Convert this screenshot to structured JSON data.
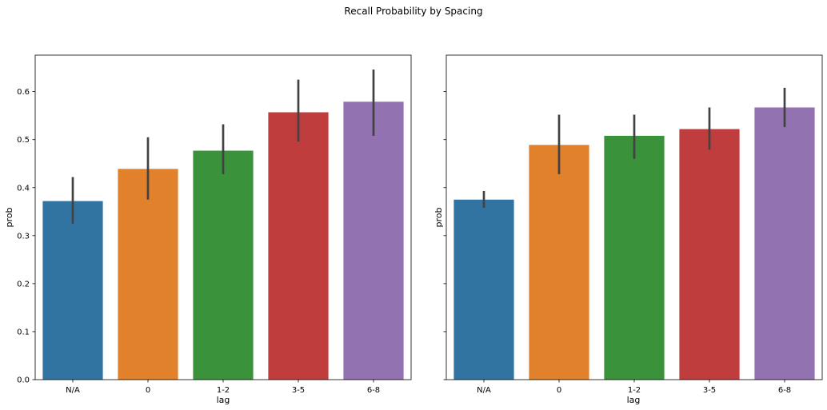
{
  "title": "Recall Probability by Spacing",
  "colors": [
    "#3274a1",
    "#e1812c",
    "#3a923a",
    "#c03d3e",
    "#9372b2"
  ],
  "chart_data": [
    {
      "type": "bar",
      "xlabel": "lag",
      "ylabel": "prob",
      "categories": [
        "N/A",
        "0",
        "1-2",
        "3-5",
        "6-8"
      ],
      "values": [
        0.372,
        0.439,
        0.477,
        0.557,
        0.579
      ],
      "error_low": [
        0.325,
        0.375,
        0.428,
        0.496,
        0.508
      ],
      "error_high": [
        0.422,
        0.505,
        0.532,
        0.625,
        0.646
      ],
      "ylim": [
        0,
        0.676
      ],
      "yticks": [
        0.0,
        0.1,
        0.2,
        0.3,
        0.4,
        0.5,
        0.6
      ],
      "ytick_labels": [
        "0.0",
        "0.1",
        "0.2",
        "0.3",
        "0.4",
        "0.5",
        "0.6"
      ],
      "grid": false
    },
    {
      "type": "bar",
      "xlabel": "lag",
      "ylabel": "prob",
      "categories": [
        "N/A",
        "0",
        "1-2",
        "3-5",
        "6-8"
      ],
      "values": [
        0.375,
        0.489,
        0.508,
        0.522,
        0.567
      ],
      "error_low": [
        0.358,
        0.428,
        0.46,
        0.479,
        0.526
      ],
      "error_high": [
        0.393,
        0.552,
        0.552,
        0.567,
        0.608
      ],
      "ylim": [
        0,
        0.676
      ],
      "yticks": [
        0.0,
        0.1,
        0.2,
        0.3,
        0.4,
        0.5,
        0.6
      ],
      "ytick_labels": [],
      "grid": false
    }
  ]
}
